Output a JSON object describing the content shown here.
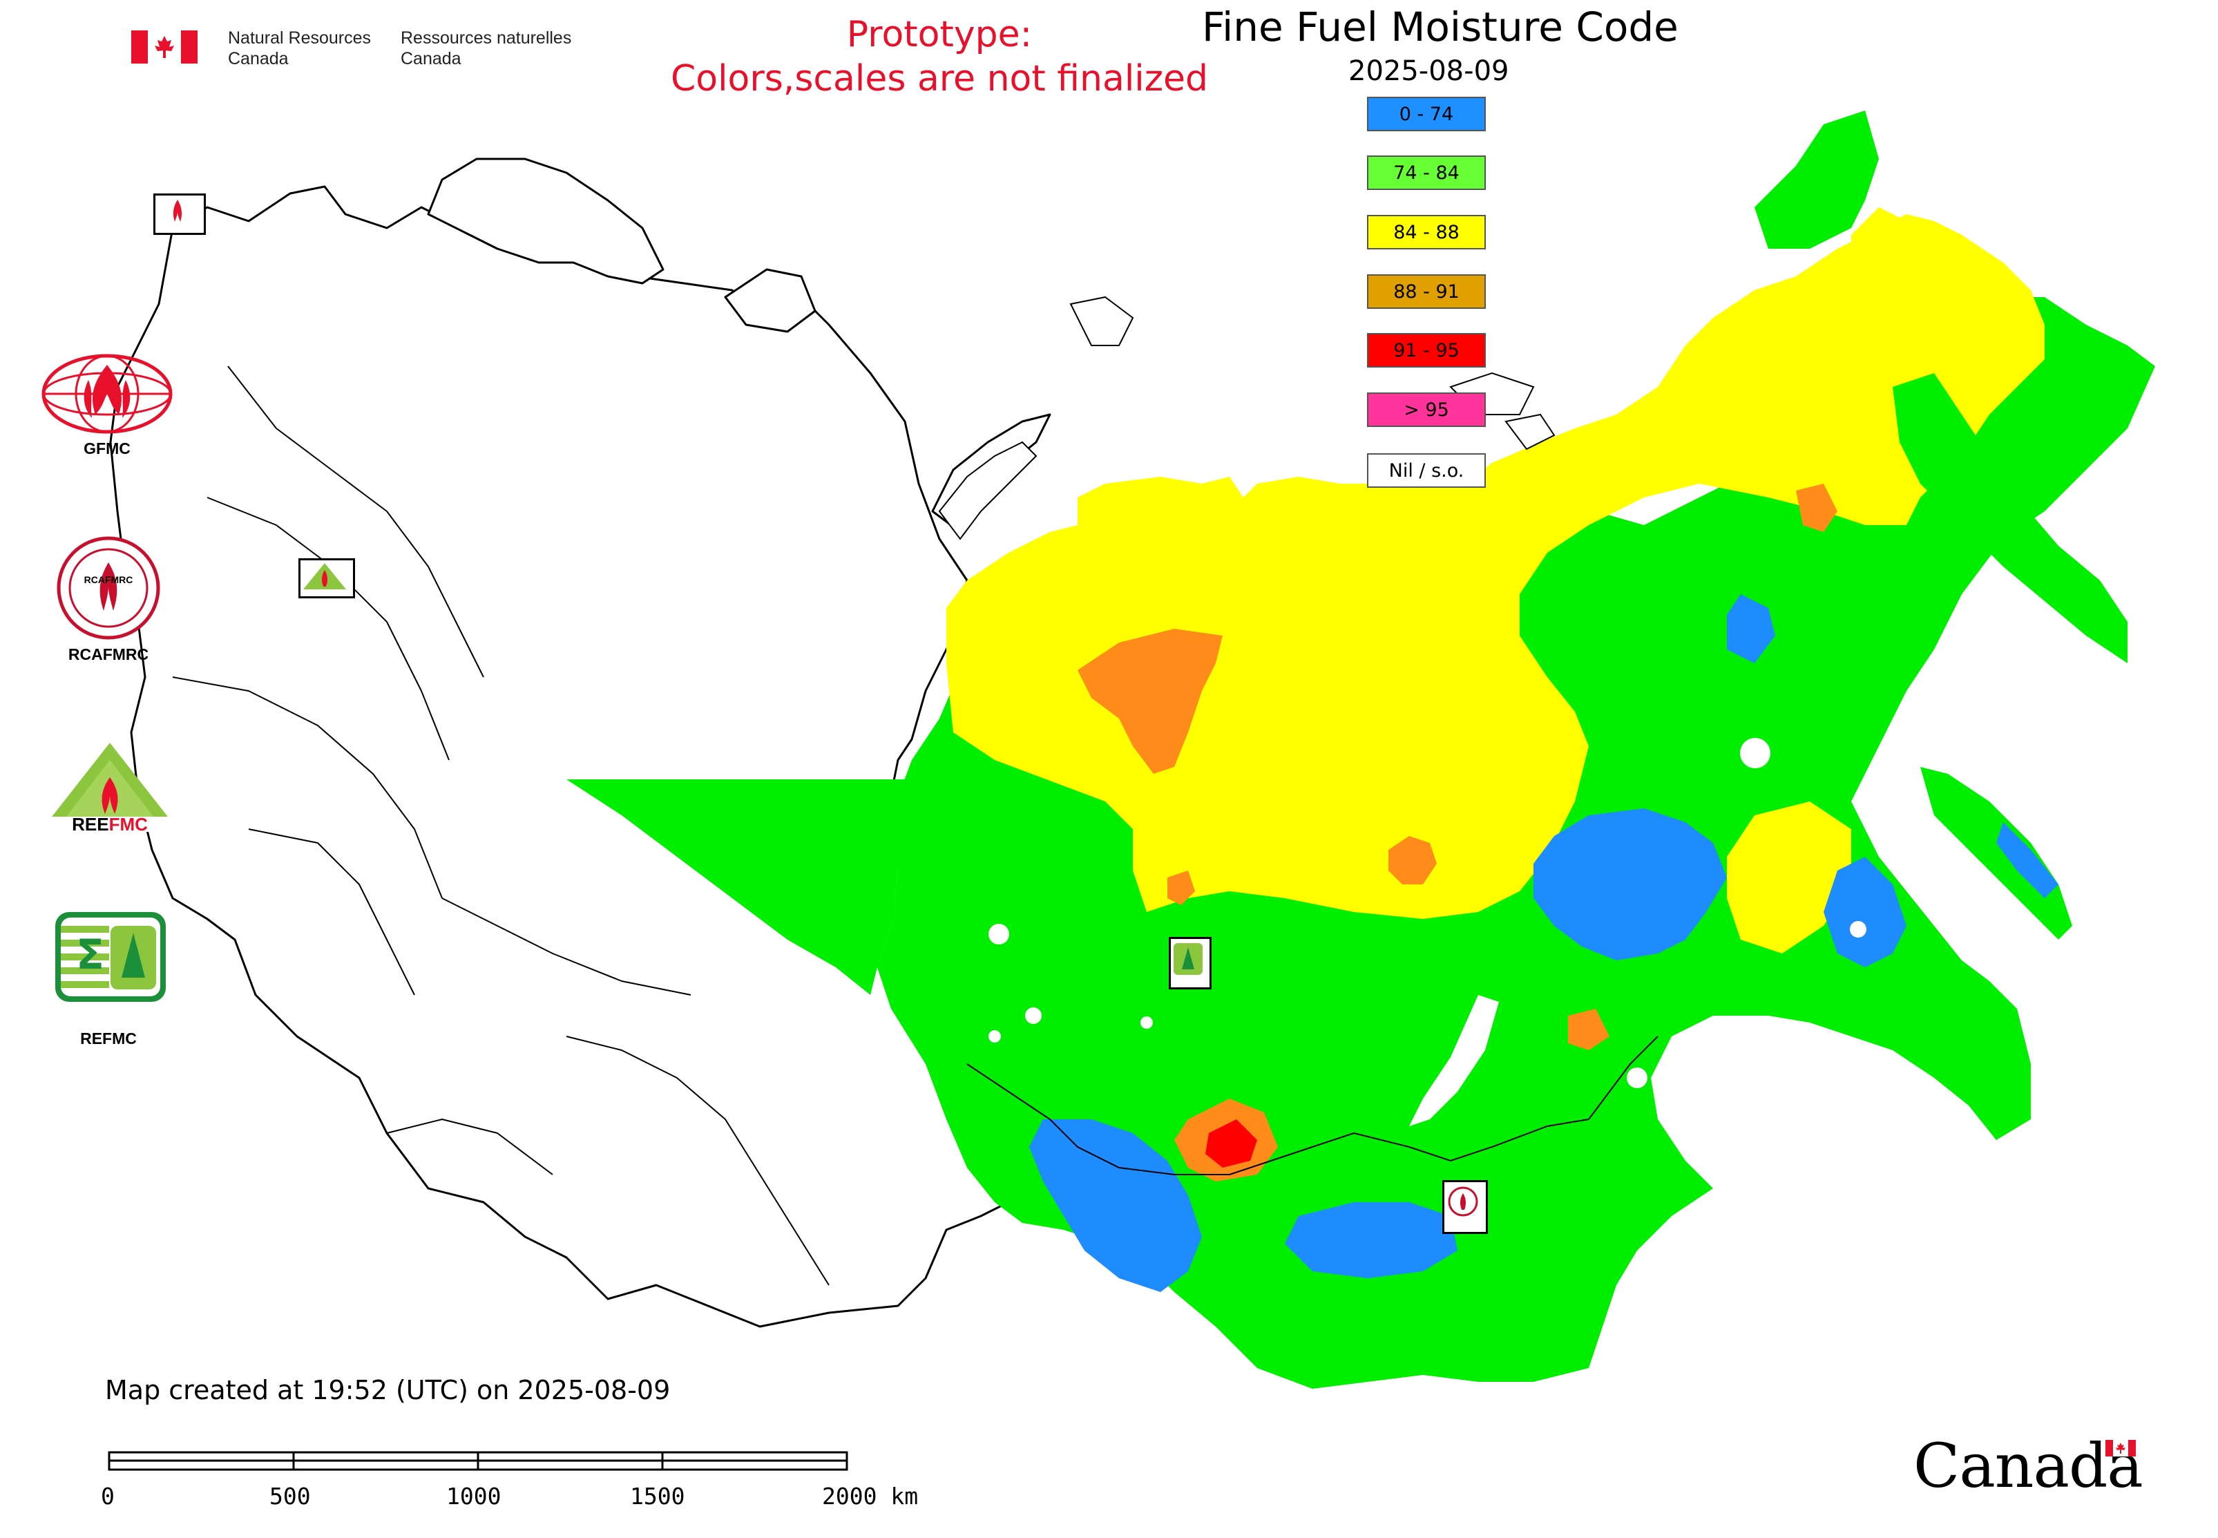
{
  "header": {
    "agency_en": "Natural Resources\nCanada",
    "agency_fr": "Ressources naturelles\nCanada",
    "prototype_line1": "Prototype:",
    "prototype_line2": "Colors,scales are not finalized",
    "title": "Fine Fuel Moisture Code",
    "date": "2025-08-09"
  },
  "legend": {
    "items": [
      {
        "label": "0 - 74",
        "color": "#1e90ff"
      },
      {
        "label": "74 - 84",
        "color": "#66ff33"
      },
      {
        "label": "84 - 88",
        "color": "#ffff00"
      },
      {
        "label": "88 - 91",
        "color": "#e0a000"
      },
      {
        "label": "91 - 95",
        "color": "#ff0000"
      },
      {
        "label": "> 95",
        "color": "#ff3399"
      },
      {
        "label": "Nil / s.o.",
        "color": "#ffffff"
      }
    ]
  },
  "organizations": [
    {
      "label": "GFMC",
      "icon": "gfmc-logo"
    },
    {
      "label": "RCAFMRC",
      "icon": "rcafmrc-logo"
    },
    {
      "label": "",
      "icon": "reefmc-logo"
    },
    {
      "label": "REFMC",
      "icon": "refmc-logo"
    }
  ],
  "map": {
    "colors": {
      "green": "#00ee00",
      "yellow": "#ffff00",
      "orange": "#ff8c1a",
      "blue": "#1e8cff",
      "red": "#ff0000",
      "outline": "#000000"
    }
  },
  "footer": {
    "created": "Map created at 19:52 (UTC) on 2025-08-09",
    "scale_labels": [
      "0",
      "500",
      "1000",
      "1500",
      "2000 km"
    ]
  },
  "wordmark": "Canada"
}
